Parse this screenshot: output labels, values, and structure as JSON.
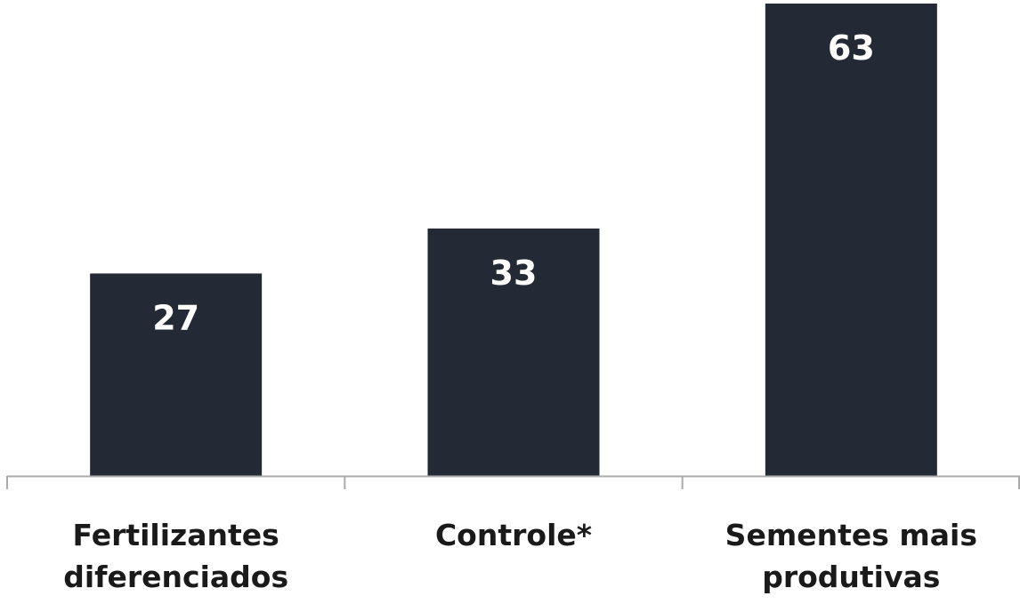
{
  "chart_data": {
    "type": "bar",
    "categories": [
      [
        "Fertilizantes",
        "diferenciados"
      ],
      [
        "Controle*"
      ],
      [
        "Sementes mais",
        "produtivas"
      ]
    ],
    "values": [
      27,
      33,
      63
    ],
    "ylim": [
      0,
      63
    ],
    "grid": false,
    "legend": "none",
    "colors": {
      "bar": "#232a36",
      "value_label": "#ffffff",
      "axis": "#aaaaaa",
      "category_label": "#1a1a1a"
    }
  }
}
